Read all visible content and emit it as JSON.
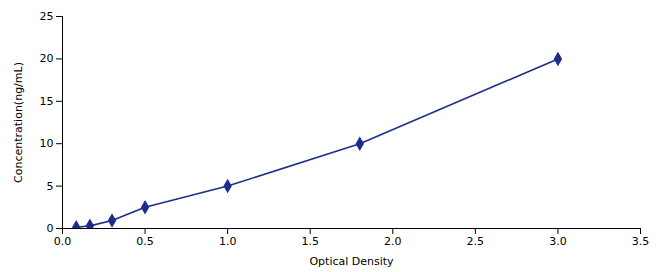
{
  "chart_data": {
    "type": "line",
    "x": [
      0.083,
      0.166,
      0.3,
      0.5,
      1.0,
      1.8,
      3.0
    ],
    "values": [
      0.156,
      0.312,
      0.938,
      2.5,
      5.0,
      10.0,
      20.0
    ],
    "color": "#1c2d8a",
    "marker": "diamond",
    "xlabel": "Optical Density",
    "ylabel": "Concentration(ng/mL)",
    "xlim": [
      0,
      3.5
    ],
    "ylim": [
      0,
      25
    ],
    "xticks": [
      {
        "value": 0,
        "label": "0.0"
      },
      0.5,
      {
        "value": 1.0,
        "label": "1.0"
      },
      1.5,
      {
        "value": 2.0,
        "label": "2.0"
      },
      2.5,
      {
        "value": 3.0,
        "label": "3.0"
      },
      3.5
    ],
    "yticks": [
      0,
      5,
      10,
      15,
      20,
      25
    ],
    "grid": false
  }
}
